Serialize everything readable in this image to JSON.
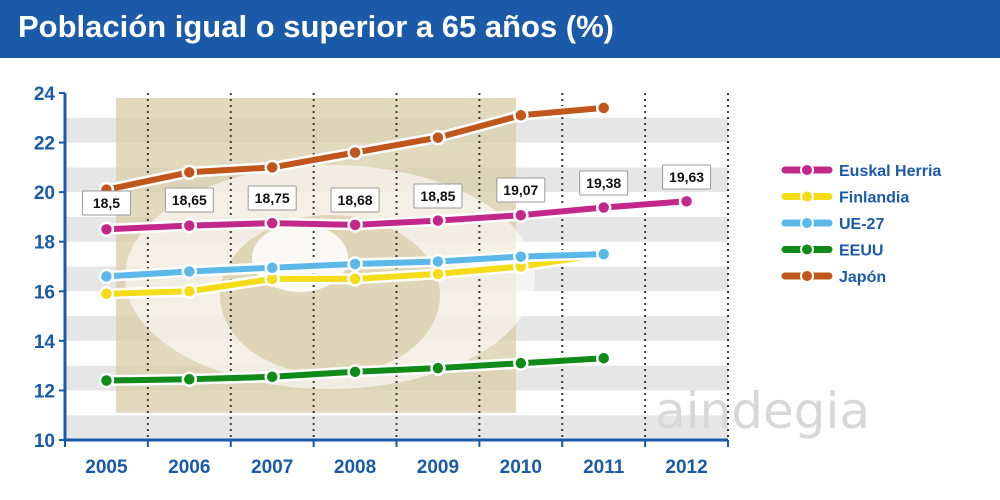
{
  "title": "Población igual o superior a 65 años (%)",
  "brand_watermark": "aindegia",
  "chart_data": {
    "type": "line",
    "title": "Población igual o superior a 65 años (%)",
    "xlabel": "",
    "ylabel": "",
    "categories": [
      "2005",
      "2006",
      "2007",
      "2008",
      "2009",
      "2010",
      "2011",
      "2012"
    ],
    "ylim": [
      10,
      24
    ],
    "yticks": [
      "10",
      "12",
      "14",
      "16",
      "18",
      "20",
      "22",
      "24"
    ],
    "grid": true,
    "legend_position": "right",
    "series": [
      {
        "name": "Euskal Herria",
        "color": "#c2288a",
        "values": [
          18.5,
          18.65,
          18.75,
          18.68,
          18.85,
          19.07,
          19.38,
          19.63
        ],
        "labels": [
          "18,5",
          "18,65",
          "18,75",
          "18,68",
          "18,85",
          "19,07",
          "19,38",
          "19,63"
        ]
      },
      {
        "name": "Finlandia",
        "color": "#f4dc18",
        "values": [
          15.9,
          16.0,
          16.5,
          16.5,
          16.7,
          17.0,
          17.5,
          null
        ]
      },
      {
        "name": "UE-27",
        "color": "#5cb8e8",
        "values": [
          16.6,
          16.8,
          16.95,
          17.1,
          17.2,
          17.4,
          17.5,
          null
        ]
      },
      {
        "name": "EEUU",
        "color": "#108a18",
        "values": [
          12.4,
          12.45,
          12.55,
          12.75,
          12.9,
          13.1,
          13.3,
          null
        ]
      },
      {
        "name": "Japón",
        "color": "#c0561c",
        "values": [
          20.1,
          20.8,
          21.0,
          21.6,
          22.2,
          23.1,
          23.4,
          null
        ]
      }
    ]
  }
}
